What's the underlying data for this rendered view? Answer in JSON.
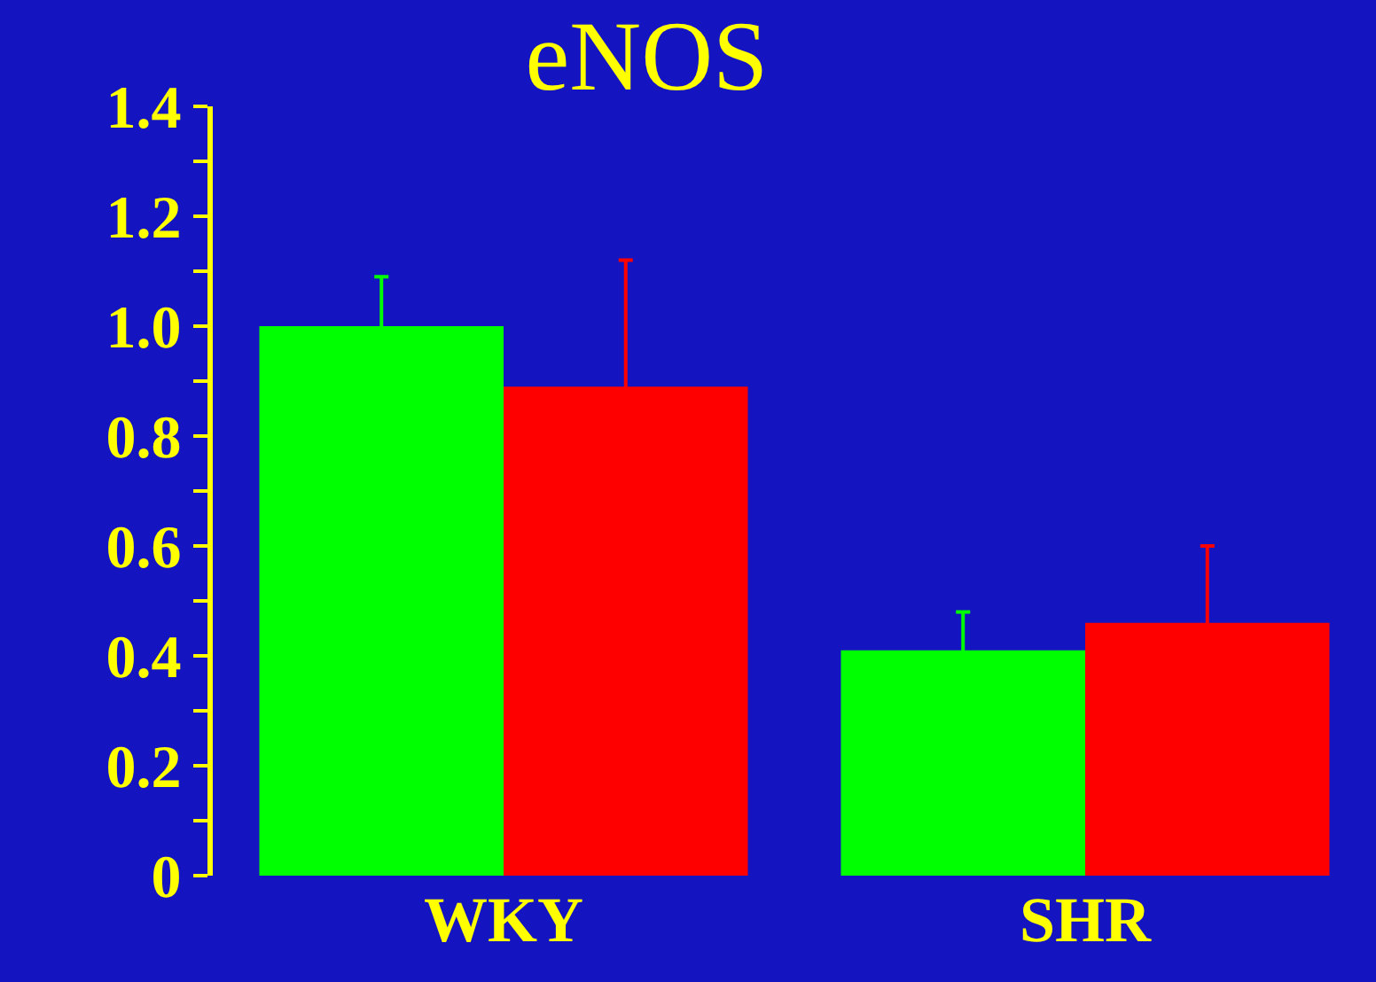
{
  "chart_data": {
    "type": "bar",
    "title": "eNOS",
    "categories": [
      "WKY",
      "SHR"
    ],
    "series": [
      {
        "color": "#00ff00",
        "values": [
          1.0,
          0.41
        ],
        "errors": [
          0.09,
          0.07
        ]
      },
      {
        "color": "#ff0000",
        "values": [
          0.89,
          0.46
        ],
        "errors": [
          0.23,
          0.14
        ]
      }
    ],
    "ylim": [
      0,
      1.4
    ],
    "yticks": [
      0,
      {
        "value": 0.1,
        "label": null
      },
      0.2,
      {
        "value": 0.3,
        "label": null
      },
      0.4,
      {
        "value": 0.5,
        "label": null
      },
      0.6,
      {
        "value": 0.7,
        "label": null
      },
      0.8,
      {
        "value": 0.9,
        "label": null
      },
      {
        "value": 1.0,
        "label": "1.0"
      },
      {
        "value": 1.1,
        "label": null
      },
      1.2,
      {
        "value": 1.3,
        "label": null
      },
      1.4
    ],
    "grid": false
  }
}
